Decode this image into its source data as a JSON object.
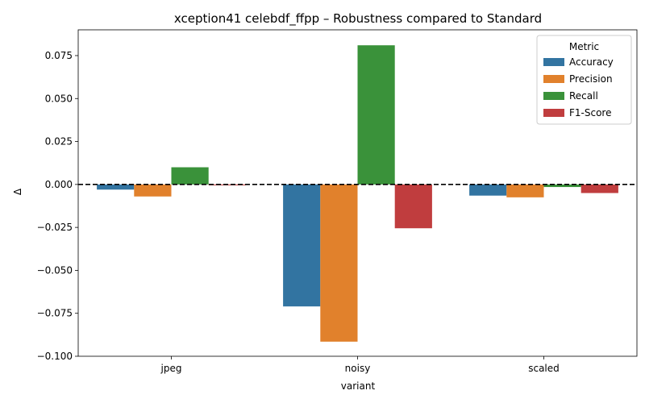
{
  "chart_data": {
    "type": "bar",
    "title": "xception41 celebdf_ffpp – Robustness compared to Standard",
    "xlabel": "variant",
    "ylabel": "Δ",
    "categories": [
      "jpeg",
      "noisy",
      "scaled"
    ],
    "ylim": [
      -0.1,
      0.09
    ],
    "yticks": [
      -0.1,
      -0.075,
      -0.05,
      -0.025,
      0.0,
      0.025,
      0.05,
      0.075
    ],
    "ytick_labels": [
      "−0.100",
      "−0.075",
      "−0.050",
      "−0.025",
      "0.000",
      "0.025",
      "0.050",
      "0.075"
    ],
    "grid": false,
    "reference_line": 0,
    "legend": {
      "title": "Metric",
      "placement": "top-right"
    },
    "series": [
      {
        "name": "Accuracy",
        "color": "#3274a1",
        "values": [
          -0.003,
          -0.071,
          -0.0065
        ]
      },
      {
        "name": "Precision",
        "color": "#e1812c",
        "values": [
          -0.007,
          -0.0915,
          -0.0075
        ]
      },
      {
        "name": "Recall",
        "color": "#3a923a",
        "values": [
          0.01,
          0.081,
          -0.0015
        ]
      },
      {
        "name": "F1-Score",
        "color": "#c03d3e",
        "values": [
          -0.0005,
          -0.0255,
          -0.005
        ]
      }
    ]
  }
}
